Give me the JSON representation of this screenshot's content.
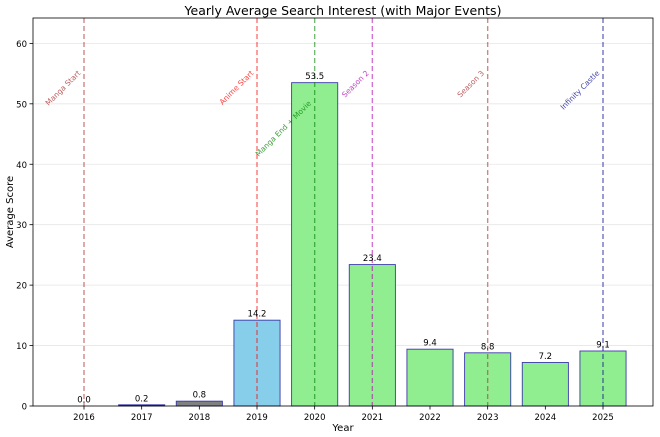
{
  "chart_data": {
    "type": "bar",
    "title": "Yearly Average Search Interest (with Major Events)",
    "xlabel": "Year",
    "ylabel": "Average Score",
    "ylim": [
      0,
      64.2
    ],
    "yticks": [
      0,
      10,
      20,
      30,
      40,
      50,
      60
    ],
    "grid": "horizontal",
    "categories": [
      "2016",
      "2017",
      "2018",
      "2019",
      "2020",
      "2021",
      "2022",
      "2023",
      "2024",
      "2025"
    ],
    "values": [
      0.0,
      0.2,
      0.8,
      14.2,
      53.5,
      23.4,
      9.4,
      8.8,
      7.2,
      9.1
    ],
    "value_labels": [
      "0.0",
      "0.2",
      "0.8",
      "14.2",
      "53.5",
      "23.4",
      "9.4",
      "8.8",
      "7.2",
      "9.1"
    ],
    "bar_colors": [
      "#191970",
      "#191970",
      "#808080",
      "#87ceeb",
      "#90ee90",
      "#90ee90",
      "#90ee90",
      "#90ee90",
      "#90ee90",
      "#90ee90"
    ],
    "bar_edge_color": "#3a3aa8",
    "events": [
      {
        "year": "2016",
        "label": "Manga Start",
        "color": "#a52a2a",
        "label_y": 50
      },
      {
        "year": "2019",
        "label": "Anime Start",
        "color": "#ff0000",
        "label_y": 50
      },
      {
        "year": "2020",
        "label": "Manga End + Movie",
        "color": "#008000",
        "label_y": 45
      },
      {
        "year": "2021",
        "label": "Season 2",
        "color": "#b000b0",
        "label_y": 50
      },
      {
        "year": "2023",
        "label": "Season 3",
        "color": "#a52a2a",
        "label_y": 50
      },
      {
        "year": "2025",
        "label": "Infinity Castle",
        "color": "#00008b",
        "label_y": 50
      }
    ]
  }
}
